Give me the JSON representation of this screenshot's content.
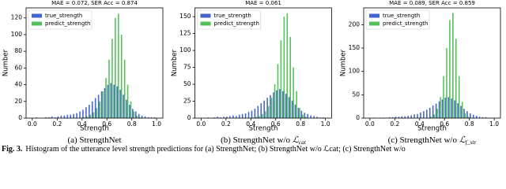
{
  "chart_data": [
    {
      "type": "histogram",
      "title": "MAE = 0.072, SER Acc = 0.874",
      "xlabel": "Strength",
      "ylabel": "Number",
      "subcaption": {
        "text": "(a) StrengthNet"
      },
      "bins": [
        0,
        0.025,
        0.05,
        0.075,
        0.1,
        0.125,
        0.15,
        0.175,
        0.2,
        0.225,
        0.25,
        0.275,
        0.3,
        0.325,
        0.35,
        0.375,
        0.4,
        0.425,
        0.45,
        0.475,
        0.5,
        0.525,
        0.55,
        0.575,
        0.6,
        0.625,
        0.65,
        0.675,
        0.7,
        0.725,
        0.75,
        0.775,
        0.8,
        0.825,
        0.85,
        0.875,
        0.9,
        0.925,
        0.95,
        0.975,
        1.0
      ],
      "series": [
        {
          "name": "true_strength",
          "color": "#4466cc",
          "values": [
            0,
            1,
            0,
            0,
            1,
            1,
            2,
            1,
            2,
            3,
            3,
            4,
            4,
            5,
            6,
            8,
            10,
            13,
            16,
            20,
            24,
            28,
            32,
            36,
            40,
            42,
            40,
            38,
            34,
            28,
            22,
            16,
            11,
            8,
            5,
            3,
            2,
            1,
            1,
            1
          ]
        },
        {
          "name": "predict_strength",
          "color": "#55c05a",
          "values": [
            0,
            0,
            0,
            0,
            0,
            0,
            0,
            0,
            0,
            0,
            0,
            0,
            0,
            0,
            0,
            0,
            1,
            2,
            4,
            7,
            12,
            20,
            32,
            48,
            70,
            95,
            120,
            125,
            100,
            70,
            40,
            20,
            8,
            3,
            1,
            0,
            0,
            0,
            0,
            0
          ]
        }
      ],
      "xlim": [
        -0.05,
        1.05
      ],
      "xticks": [
        {
          "value": 0,
          "label": "0.0"
        },
        {
          "value": 0.2,
          "label": "0.2"
        },
        {
          "value": 0.4,
          "label": "0.4"
        },
        {
          "value": 0.6,
          "label": "0.6"
        },
        {
          "value": 0.8,
          "label": "0.8"
        },
        {
          "value": 1,
          "label": "1.0"
        }
      ],
      "ylim": [
        0,
        132
      ],
      "yticks": [
        0,
        20,
        40,
        60,
        80,
        100,
        120
      ],
      "legend": "upper left"
    },
    {
      "type": "histogram",
      "title": "MAE = 0.061",
      "xlabel": "Strength",
      "ylabel": "Number",
      "subcaption": {
        "text": "(b) StrengthNet w/o ",
        "symbol": "ℒ",
        "sub": "cat"
      },
      "bins": [
        0,
        0.025,
        0.05,
        0.075,
        0.1,
        0.125,
        0.15,
        0.175,
        0.2,
        0.225,
        0.25,
        0.275,
        0.3,
        0.325,
        0.35,
        0.375,
        0.4,
        0.425,
        0.45,
        0.475,
        0.5,
        0.525,
        0.55,
        0.575,
        0.6,
        0.625,
        0.65,
        0.675,
        0.7,
        0.725,
        0.75,
        0.775,
        0.8,
        0.825,
        0.85,
        0.875,
        0.9,
        0.925,
        0.95,
        0.975,
        1.0
      ],
      "series": [
        {
          "name": "true_strength",
          "color": "#4466cc",
          "values": [
            0,
            0,
            1,
            0,
            1,
            2,
            1,
            2,
            2,
            3,
            4,
            3,
            5,
            6,
            7,
            9,
            11,
            14,
            18,
            22,
            26,
            30,
            34,
            38,
            41,
            43,
            40,
            36,
            31,
            26,
            20,
            15,
            11,
            8,
            6,
            4,
            3,
            2,
            1,
            1
          ]
        },
        {
          "name": "predict_strength",
          "color": "#55c05a",
          "values": [
            0,
            0,
            0,
            0,
            0,
            0,
            0,
            0,
            0,
            0,
            0,
            0,
            0,
            0,
            0,
            0,
            1,
            2,
            3,
            6,
            10,
            18,
            30,
            50,
            80,
            115,
            150,
            155,
            120,
            75,
            40,
            15,
            5,
            2,
            0,
            0,
            0,
            0,
            0,
            0
          ]
        }
      ],
      "xlim": [
        -0.05,
        1.05
      ],
      "xticks": [
        {
          "value": 0,
          "label": "0.0"
        },
        {
          "value": 0.2,
          "label": "0.2"
        },
        {
          "value": 0.4,
          "label": "0.4"
        },
        {
          "value": 0.6,
          "label": "0.6"
        },
        {
          "value": 0.8,
          "label": "0.8"
        },
        {
          "value": 1,
          "label": "1.0"
        }
      ],
      "ylim": [
        0,
        163
      ],
      "yticks": [
        0,
        25,
        50,
        75,
        100,
        125,
        150
      ],
      "legend": "upper left"
    },
    {
      "type": "histogram",
      "title": "MAE = 0.089, SER Acc = 0.859",
      "xlabel": "Strength",
      "ylabel": "Number",
      "subcaption": {
        "text": "(c) StrengthNet w/o ",
        "symbol": "ℒ",
        "sub": "f_str"
      },
      "bins": [
        0,
        0.025,
        0.05,
        0.075,
        0.1,
        0.125,
        0.15,
        0.175,
        0.2,
        0.225,
        0.25,
        0.275,
        0.3,
        0.325,
        0.35,
        0.375,
        0.4,
        0.425,
        0.45,
        0.475,
        0.5,
        0.525,
        0.55,
        0.575,
        0.6,
        0.625,
        0.65,
        0.675,
        0.7,
        0.725,
        0.75,
        0.775,
        0.8,
        0.825,
        0.85,
        0.875,
        0.9,
        0.925,
        0.95,
        0.975,
        1.0
      ],
      "series": [
        {
          "name": "true_strength",
          "color": "#4466cc",
          "values": [
            0,
            1,
            0,
            1,
            1,
            1,
            2,
            2,
            3,
            3,
            4,
            4,
            5,
            6,
            8,
            9,
            12,
            15,
            18,
            22,
            27,
            31,
            36,
            40,
            44,
            45,
            42,
            38,
            32,
            26,
            20,
            15,
            10,
            7,
            5,
            3,
            2,
            2,
            1,
            1
          ]
        },
        {
          "name": "predict_strength",
          "color": "#55c05a",
          "values": [
            0,
            0,
            0,
            0,
            0,
            0,
            0,
            0,
            0,
            0,
            0,
            0,
            0,
            0,
            0,
            0,
            0,
            0,
            1,
            3,
            8,
            20,
            45,
            90,
            150,
            210,
            225,
            170,
            90,
            35,
            10,
            3,
            1,
            0,
            0,
            0,
            0,
            0,
            0,
            0
          ]
        }
      ],
      "xlim": [
        -0.05,
        1.05
      ],
      "xticks": [
        {
          "value": 0,
          "label": "0.0"
        },
        {
          "value": 0.2,
          "label": "0.2"
        },
        {
          "value": 0.4,
          "label": "0.4"
        },
        {
          "value": 0.6,
          "label": "0.6"
        },
        {
          "value": 0.8,
          "label": "0.8"
        },
        {
          "value": 1,
          "label": "1.0"
        }
      ],
      "ylim": [
        0,
        236
      ],
      "yticks": [
        0,
        50,
        100,
        150,
        200
      ],
      "legend": "upper left"
    }
  ],
  "figure_caption": {
    "label": "Fig. 3.",
    "text": "Histogram of the utterance level strength predictions for (a) StrengthNet; (b) StrengthNet w/o ℒcat; (c) StrengthNet w/o"
  }
}
